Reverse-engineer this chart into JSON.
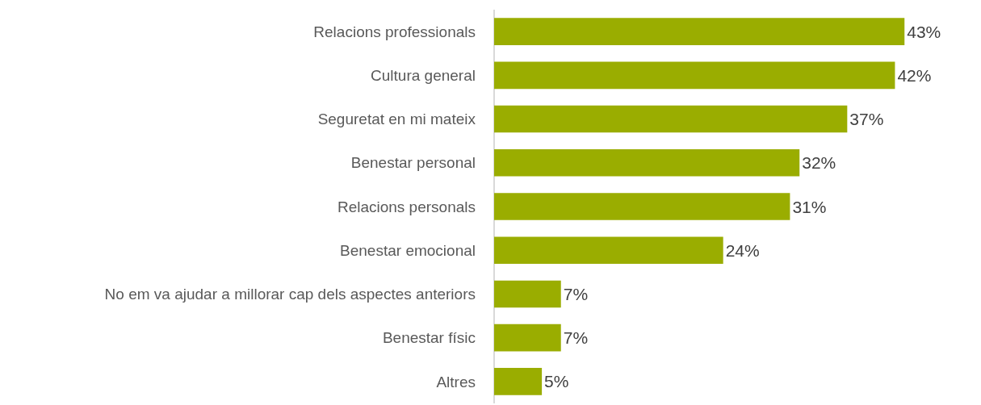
{
  "chart_data": {
    "type": "bar",
    "orientation": "horizontal",
    "categories": [
      "Relacions professionals",
      "Cultura general",
      "Seguretat en mi mateix",
      "Benestar personal",
      "Relacions personals",
      "Benestar emocional",
      "No em va ajudar a millorar cap dels aspectes anteriors",
      "Benestar físic",
      "Altres"
    ],
    "values": [
      43,
      42,
      37,
      32,
      31,
      24,
      7,
      7,
      5
    ],
    "value_labels": [
      "43%",
      "42%",
      "37%",
      "32%",
      "31%",
      "24%",
      "7%",
      "7%",
      "5%"
    ],
    "color": "#9aad00",
    "legend": false
  }
}
